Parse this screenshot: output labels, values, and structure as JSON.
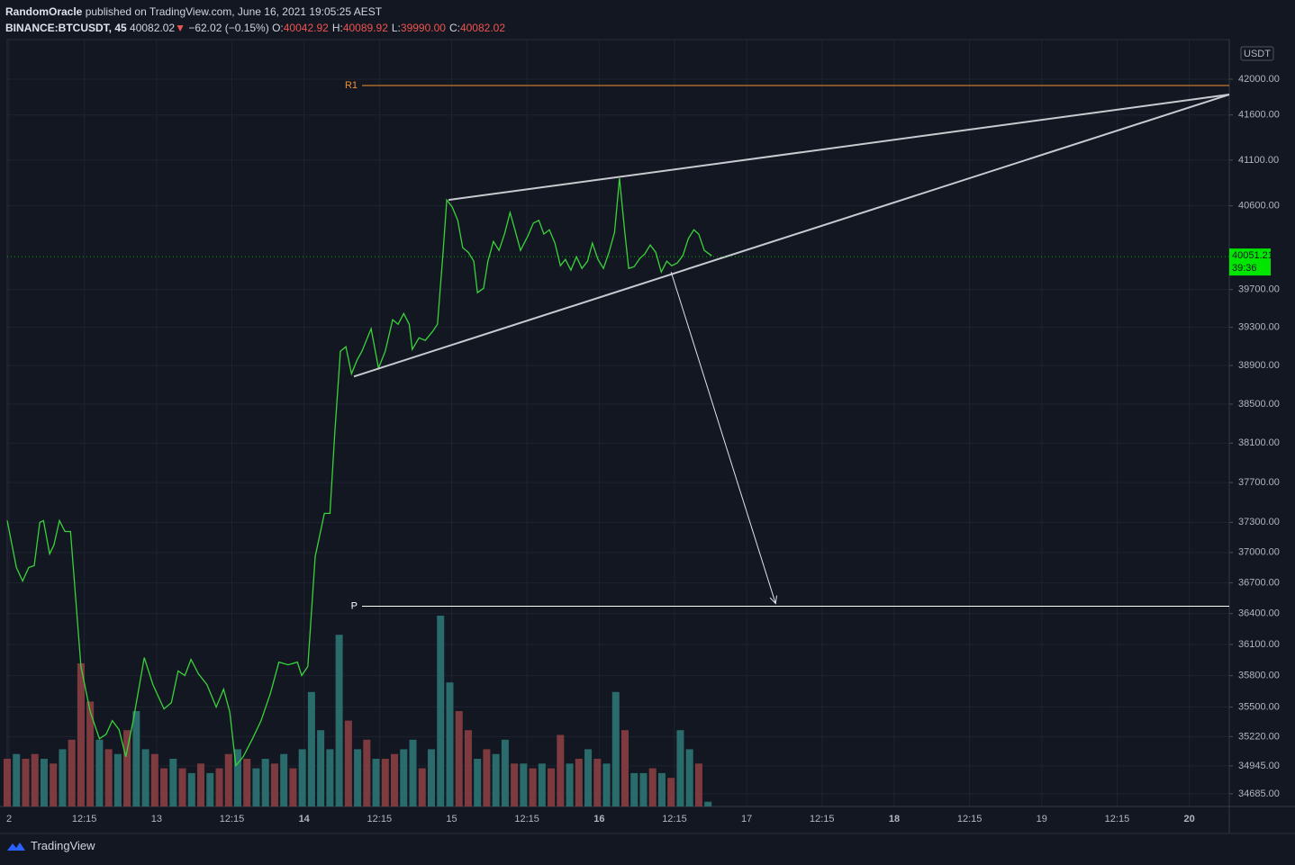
{
  "header": {
    "author": "RandomOracle",
    "published": "published on TradingView.com, June 16, 2021 19:05:25 AEST",
    "symbol": "BINANCE:BTCUSDT, 45",
    "price": "40082.02",
    "arrow": "▼",
    "change": "−62.02 (−0.15%)",
    "ohlc": [
      {
        "label": "O:",
        "value": "40042.92"
      },
      {
        "label": "H:",
        "value": "40089.92"
      },
      {
        "label": "L:",
        "value": "39990.00"
      },
      {
        "label": "C:",
        "value": "40082.02"
      }
    ]
  },
  "footer": {
    "brand": "TradingView"
  },
  "chart_data": {
    "type": "line",
    "color": "#3ad23a",
    "log_scale": true,
    "grid": true,
    "y_unit": "USDT",
    "x": [
      -0.3,
      1.2,
      2.2,
      3.2,
      4.1,
      5.0,
      5.6,
      6.6,
      7.3,
      8.2,
      9.1,
      10.0,
      11.7,
      13.2,
      14.7,
      15.8,
      16.8,
      17.9,
      19.0,
      20.2,
      22.0,
      23.4,
      25.2,
      26.4,
      27.5,
      28.6,
      29.6,
      30.8,
      32.2,
      33.7,
      34.9,
      35.9,
      36.9,
      38.1,
      39.6,
      41.0,
      42.5,
      43.9,
      45.4,
      46.9,
      47.6,
      48.6,
      49.8,
      51.3,
      52.2,
      53.0,
      53.9,
      54.8,
      55.7,
      56.6,
      57.4,
      58.9,
      60.1,
      61.2,
      62.4,
      63.3,
      64.2,
      65.1,
      65.6,
      66.7,
      67.7,
      68.9,
      69.7,
      70.6,
      71.2,
      72.1,
      73.0,
      73.8,
      74.7,
      75.6,
      76.2,
      77.2,
      77.9,
      78.8,
      79.7,
      80.6,
      81.5,
      82.3,
      83.2,
      84.4,
      85.3,
      86.2,
      87.0,
      87.9,
      88.8,
      89.7,
      90.5,
      91.4,
      92.3,
      93.2,
      94.1,
      94.9,
      95.8,
      96.7,
      97.6,
      98.5,
      99.3,
      100.2,
      100.8,
      101.7,
      102.6,
      103.4,
      104.3,
      105.2,
      106.1,
      107.0,
      107.8,
      108.7,
      109.6,
      110.5,
      111.4,
      112.2,
      113.1,
      114.3
    ],
    "values": [
      37317,
      36852,
      36719,
      36852,
      36870,
      37300,
      37317,
      36986,
      37075,
      37317,
      37209,
      37209,
      35887,
      35456,
      35200,
      35243,
      35371,
      35286,
      35031,
      35371,
      35973,
      35714,
      35482,
      35542,
      35844,
      35801,
      35956,
      35818,
      35714,
      35499,
      35671,
      35456,
      34947,
      35031,
      35200,
      35371,
      35628,
      35930,
      35904,
      35930,
      35801,
      35887,
      36959,
      37389,
      37389,
      38210,
      39049,
      39096,
      38814,
      38955,
      39049,
      39285,
      38873,
      39049,
      39380,
      39333,
      39446,
      39333,
      39068,
      39190,
      39162,
      39257,
      39333,
      40099,
      40664,
      40586,
      40442,
      40147,
      40099,
      40002,
      39666,
      39714,
      40002,
      40215,
      40118,
      40293,
      40527,
      40340,
      40118,
      40274,
      40413,
      40442,
      40293,
      40340,
      40196,
      39954,
      40021,
      39906,
      40050,
      39925,
      40002,
      40196,
      40021,
      39925,
      40099,
      40313,
      40900,
      40293,
      39925,
      39944,
      40031,
      40079,
      40176,
      40099,
      39887,
      40002,
      39954,
      39983,
      40060,
      40244,
      40340,
      40293,
      40118,
      40060
    ],
    "xlim": [
      -0.3,
      198.5
    ],
    "ylim": [
      34567,
      42448
    ],
    "xticks": [
      {
        "value": 0,
        "label": "2"
      },
      {
        "value": 12.25,
        "label": "12:15"
      },
      {
        "value": 24,
        "label": "13"
      },
      {
        "value": 36.25,
        "label": "12:15"
      },
      {
        "value": 48,
        "label": "14"
      },
      {
        "value": 60.25,
        "label": "12:15"
      },
      {
        "value": 72,
        "label": "15"
      },
      {
        "value": 84.25,
        "label": "12:15"
      },
      {
        "value": 96,
        "label": "16"
      },
      {
        "value": 108.25,
        "label": "12:15"
      },
      {
        "value": 120,
        "label": "17"
      },
      {
        "value": 132.25,
        "label": "12:15"
      },
      {
        "value": 144,
        "label": "18"
      },
      {
        "value": 156.25,
        "label": "12:15"
      },
      {
        "value": 168,
        "label": "19"
      },
      {
        "value": 180.25,
        "label": "12:15"
      },
      {
        "value": 192,
        "label": "20"
      }
    ],
    "yticks": [
      {
        "value": 42000,
        "label": "42000.00"
      },
      {
        "value": 41600,
        "label": "41600.00"
      },
      {
        "value": 41100,
        "label": "41100.00"
      },
      {
        "value": 40600,
        "label": "40600.00"
      },
      {
        "value": 39700,
        "label": "39700.00"
      },
      {
        "value": 39300,
        "label": "39300.00"
      },
      {
        "value": 38900,
        "label": "38900.00"
      },
      {
        "value": 38500,
        "label": "38500.00"
      },
      {
        "value": 38100,
        "label": "38100.00"
      },
      {
        "value": 37700,
        "label": "37700.00"
      },
      {
        "value": 37300,
        "label": "37300.00"
      },
      {
        "value": 37000,
        "label": "37000.00"
      },
      {
        "value": 36700,
        "label": "36700.00"
      },
      {
        "value": 36400,
        "label": "36400.00"
      },
      {
        "value": 36100,
        "label": "36100.00"
      },
      {
        "value": 35800,
        "label": "35800.00"
      },
      {
        "value": 35500,
        "label": "35500.00"
      },
      {
        "value": 35220,
        "label": "35220.00"
      },
      {
        "value": 34945,
        "label": "34945.00"
      },
      {
        "value": 34685,
        "label": "34685.00"
      }
    ],
    "last_price": {
      "value": 40051.21,
      "countdown": "39:36",
      "color": "#00e600"
    },
    "levels": [
      {
        "label": "R1",
        "value": 41929,
        "color": "#f0912f"
      },
      {
        "label": "P",
        "value": 36472,
        "color": "#ffffff"
      }
    ],
    "trendlines": [
      {
        "x1": 71.5,
        "y1": 40664,
        "x2": 198.5,
        "y2": 41828,
        "color": "#c8cad0"
      },
      {
        "x1": 56.1,
        "y1": 38786,
        "x2": 198.5,
        "y2": 41828,
        "color": "#c8cad0"
      }
    ],
    "arrow": {
      "x1": 107.7,
      "y1": 39887,
      "x2": 124.7,
      "y2": 36498,
      "color": "#e0e3eb"
    },
    "volume": {
      "up_color": "#2a6b6b",
      "down_color": "#7e3b3f",
      "x": [
        -0.3,
        1.2,
        2.7,
        4.2,
        5.7,
        7.2,
        8.7,
        10.2,
        11.7,
        13.2,
        14.7,
        16.2,
        17.7,
        19.2,
        20.7,
        22.2,
        23.7,
        25.2,
        26.7,
        28.2,
        29.7,
        31.2,
        32.7,
        34.2,
        35.7,
        37.2,
        38.7,
        40.2,
        41.7,
        43.2,
        44.7,
        46.2,
        47.7,
        49.2,
        50.7,
        52.2,
        53.7,
        55.2,
        56.7,
        58.2,
        59.7,
        61.2,
        62.7,
        64.2,
        65.7,
        67.2,
        68.7,
        70.2,
        71.7,
        73.2,
        74.7,
        76.2,
        77.7,
        79.2,
        80.7,
        82.2,
        83.7,
        85.2,
        86.7,
        88.2,
        89.7,
        91.2,
        92.7,
        94.2,
        95.7,
        97.2,
        98.7,
        100.2,
        101.7,
        103.2,
        104.7,
        106.2,
        107.7,
        109.2,
        110.7,
        112.2,
        113.7
      ],
      "values": [
        50,
        55,
        50,
        55,
        50,
        45,
        60,
        70,
        150,
        110,
        70,
        60,
        55,
        80,
        100,
        60,
        55,
        40,
        50,
        40,
        35,
        45,
        35,
        40,
        55,
        60,
        50,
        40,
        50,
        45,
        55,
        40,
        60,
        120,
        80,
        60,
        180,
        90,
        60,
        70,
        50,
        50,
        55,
        60,
        70,
        40,
        60,
        200,
        130,
        100,
        80,
        50,
        60,
        55,
        70,
        45,
        45,
        40,
        45,
        40,
        75,
        45,
        50,
        60,
        50,
        45,
        120,
        80,
        35,
        35,
        40,
        35,
        30,
        80,
        60,
        45,
        5
      ],
      "up": [
        false,
        true,
        false,
        false,
        true,
        false,
        true,
        false,
        false,
        false,
        true,
        false,
        true,
        false,
        true,
        true,
        false,
        false,
        true,
        false,
        true,
        false,
        true,
        false,
        false,
        true,
        false,
        true,
        true,
        false,
        true,
        false,
        true,
        true,
        true,
        true,
        true,
        false,
        true,
        false,
        true,
        false,
        false,
        true,
        true,
        false,
        true,
        true,
        true,
        false,
        false,
        true,
        false,
        true,
        true,
        false,
        true,
        false,
        true,
        false,
        false,
        true,
        false,
        true,
        false,
        true,
        true,
        false,
        true,
        true,
        false,
        true,
        false,
        true,
        true,
        false,
        true
      ]
    }
  }
}
